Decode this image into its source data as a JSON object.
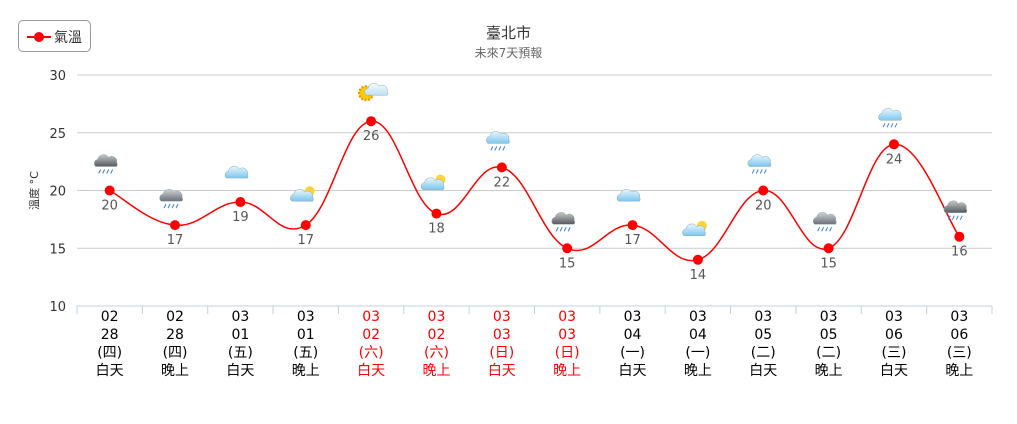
{
  "legend": {
    "label": "氣溫"
  },
  "colors": {
    "series": "#ff0000",
    "weekend": "#ff0000",
    "weekday": "#000000",
    "grid": "#cccccc"
  },
  "chart_data": {
    "type": "line",
    "title": "臺北市",
    "subtitle": "未來7天預報",
    "ylabel": "溫度 °C",
    "ylim": [
      10,
      30
    ],
    "yticks": [
      10,
      15,
      20,
      25,
      30
    ],
    "grid": true,
    "legend_position": "top-left",
    "categories": [
      {
        "month": "02",
        "day": "28",
        "weekday": "(四)",
        "period": "白天",
        "weekend": false
      },
      {
        "month": "02",
        "day": "28",
        "weekday": "(四)",
        "period": "晚上",
        "weekend": false
      },
      {
        "month": "03",
        "day": "01",
        "weekday": "(五)",
        "period": "白天",
        "weekend": false
      },
      {
        "month": "03",
        "day": "01",
        "weekday": "(五)",
        "period": "晚上",
        "weekend": false
      },
      {
        "month": "03",
        "day": "02",
        "weekday": "(六)",
        "period": "白天",
        "weekend": true
      },
      {
        "month": "03",
        "day": "02",
        "weekday": "(六)",
        "period": "晚上",
        "weekend": true
      },
      {
        "month": "03",
        "day": "03",
        "weekday": "(日)",
        "period": "白天",
        "weekend": true
      },
      {
        "month": "03",
        "day": "03",
        "weekday": "(日)",
        "period": "晚上",
        "weekend": true
      },
      {
        "month": "03",
        "day": "04",
        "weekday": "(一)",
        "period": "白天",
        "weekend": false
      },
      {
        "month": "03",
        "day": "04",
        "weekday": "(一)",
        "period": "晚上",
        "weekend": false
      },
      {
        "month": "03",
        "day": "05",
        "weekday": "(二)",
        "period": "白天",
        "weekend": false
      },
      {
        "month": "03",
        "day": "05",
        "weekday": "(二)",
        "period": "晚上",
        "weekend": false
      },
      {
        "month": "03",
        "day": "06",
        "weekday": "(三)",
        "period": "白天",
        "weekend": false
      },
      {
        "month": "03",
        "day": "06",
        "weekday": "(三)",
        "period": "晚上",
        "weekend": false
      }
    ],
    "series": [
      {
        "name": "氣溫",
        "values": [
          20,
          17,
          19,
          17,
          26,
          18,
          22,
          15,
          17,
          14,
          20,
          15,
          24,
          16
        ]
      }
    ],
    "weather_icons": [
      "thunder-rain-cloud-icon",
      "rain-cloud-night-icon",
      "cloudy-icon",
      "partly-cloudy-night-icon",
      "sunny-cloud-icon",
      "partly-cloudy-night-icon",
      "rain-cloud-icon",
      "thunder-rain-cloud-night-icon",
      "cloudy-icon",
      "partly-cloudy-night-icon",
      "rain-cloud-icon",
      "rain-cloud-night-icon",
      "rain-cloud-icon",
      "thunder-rain-cloud-night-icon"
    ]
  }
}
